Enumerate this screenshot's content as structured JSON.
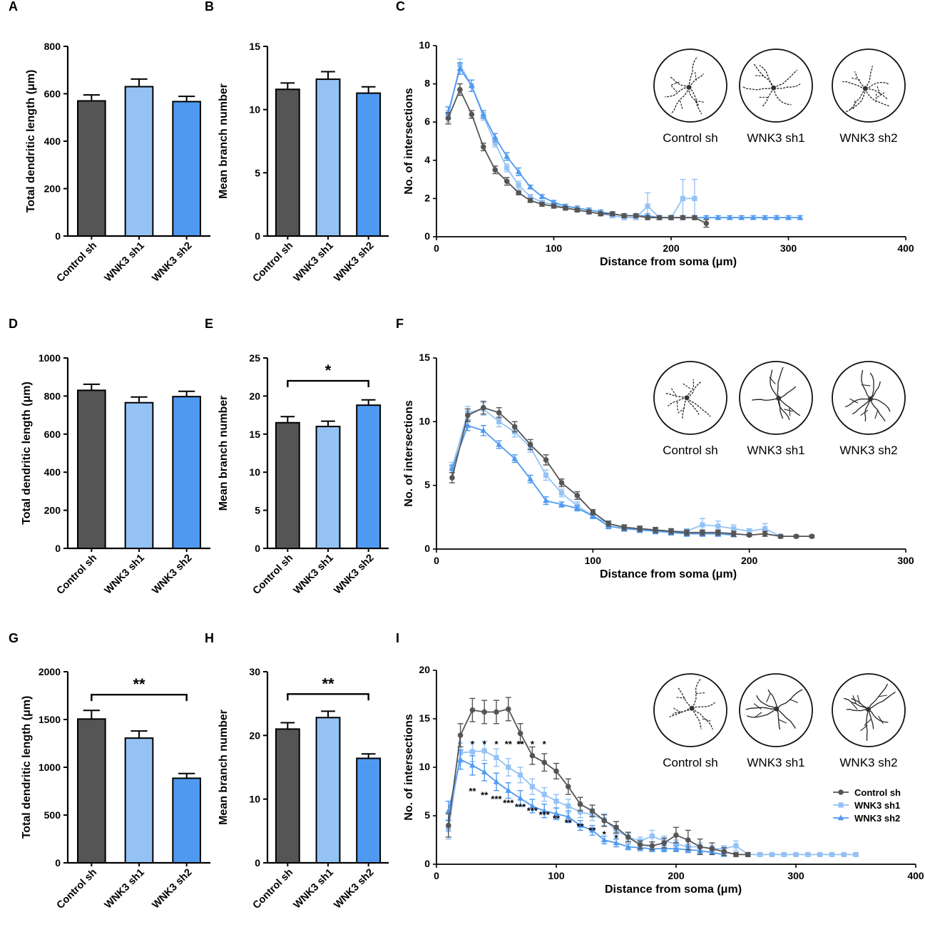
{
  "figure": {
    "panel_labels": [
      "A",
      "B",
      "C",
      "D",
      "E",
      "F",
      "G",
      "H",
      "I"
    ],
    "groups": [
      "Control sh",
      "WNK3 sh1",
      "WNK3 sh2"
    ],
    "colors": {
      "control": "#555555",
      "sh1": "#95c2f5",
      "sh2": "#4f9af0"
    },
    "bar_axis_labels": {
      "length": "Total dendritic length (μm)",
      "branch": "Mean branch number"
    },
    "sholl_axis_labels": {
      "x": "Distance from soma (μm)",
      "y": "No. of intersections"
    },
    "legend": [
      "Control sh",
      "WNK3 sh1",
      "WNK3 sh2"
    ]
  },
  "chart_data": [
    {
      "panel": "A",
      "type": "bar",
      "title": "",
      "xlabel": "",
      "ylabel": "Total dendritic length (μm)",
      "categories": [
        "Control sh",
        "WNK3 sh1",
        "WNK3 sh2"
      ],
      "values": [
        570,
        630,
        567
      ],
      "errors": [
        25,
        32,
        22
      ],
      "ylim": [
        0,
        800
      ],
      "yticks": [
        0,
        200,
        400,
        600,
        800
      ],
      "significance": null
    },
    {
      "panel": "B",
      "type": "bar",
      "title": "",
      "xlabel": "",
      "ylabel": "Mean branch number",
      "categories": [
        "Control sh",
        "WNK3 sh1",
        "WNK3 sh2"
      ],
      "values": [
        11.6,
        12.4,
        11.3
      ],
      "errors": [
        0.5,
        0.6,
        0.5
      ],
      "ylim": [
        0,
        15
      ],
      "yticks": [
        0,
        5,
        10,
        15
      ],
      "significance": null
    },
    {
      "panel": "C",
      "type": "line",
      "xlabel": "Distance from soma (μm)",
      "ylabel": "No. of intersections",
      "xlim": [
        0,
        400
      ],
      "ylim": [
        0,
        10
      ],
      "xticks": [
        0,
        100,
        200,
        300,
        400
      ],
      "yticks": [
        0,
        2,
        4,
        6,
        8,
        10
      ],
      "series": [
        {
          "name": "Control sh",
          "x": [
            10,
            20,
            30,
            40,
            50,
            60,
            70,
            80,
            90,
            100,
            110,
            120,
            130,
            140,
            150,
            160,
            170,
            180,
            190,
            200,
            210,
            220,
            230
          ],
          "y": [
            6.2,
            7.7,
            6.4,
            4.7,
            3.5,
            2.9,
            2.3,
            1.9,
            1.7,
            1.6,
            1.5,
            1.4,
            1.3,
            1.2,
            1.2,
            1.1,
            1.1,
            1.0,
            1.0,
            1.0,
            1.0,
            1.0,
            0.7
          ],
          "err": [
            0.3,
            0.3,
            0.2,
            0.2,
            0.2,
            0.2,
            0.1,
            0.1,
            0.1,
            0.1,
            0.1,
            0.1,
            0.1,
            0.1,
            0.1,
            0.1,
            0.1,
            0.1,
            0.1,
            0.1,
            0.1,
            0.1,
            0.2
          ]
        },
        {
          "name": "WNK3 sh1",
          "x": [
            10,
            20,
            30,
            40,
            50,
            60,
            70,
            80,
            90,
            100,
            110,
            120,
            130,
            140,
            150,
            160,
            170,
            180,
            190,
            200,
            210,
            220
          ],
          "y": [
            6.3,
            9.0,
            7.9,
            6.3,
            4.9,
            3.6,
            2.7,
            2.1,
            1.8,
            1.7,
            1.5,
            1.4,
            1.3,
            1.2,
            1.1,
            1.0,
            1.0,
            1.6,
            1.0,
            1.0,
            2.0,
            2.0
          ],
          "err": [
            0.3,
            0.3,
            0.3,
            0.2,
            0.2,
            0.2,
            0.2,
            0.1,
            0.1,
            0.1,
            0.1,
            0.1,
            0.1,
            0.1,
            0.1,
            0.1,
            0.1,
            0.7,
            0.1,
            0.1,
            1.0,
            1.0
          ]
        },
        {
          "name": "WNK3 sh2",
          "x": [
            10,
            20,
            30,
            40,
            50,
            60,
            70,
            80,
            90,
            100,
            110,
            120,
            130,
            140,
            150,
            160,
            170,
            180,
            190,
            200,
            210,
            220,
            230,
            240,
            250,
            260,
            270,
            280,
            290,
            300,
            310
          ],
          "y": [
            6.5,
            8.8,
            7.9,
            6.4,
            5.2,
            4.2,
            3.4,
            2.6,
            2.1,
            1.8,
            1.6,
            1.5,
            1.4,
            1.3,
            1.2,
            1.1,
            1.1,
            1.1,
            1.0,
            1.0,
            1.0,
            1.0,
            1.0,
            1.0,
            1.0,
            1.0,
            1.0,
            1.0,
            1.0,
            1.0,
            1.0
          ],
          "err": [
            0.3,
            0.3,
            0.3,
            0.2,
            0.2,
            0.2,
            0.2,
            0.1,
            0.1,
            0.1,
            0.1,
            0.1,
            0.1,
            0.1,
            0.1,
            0.1,
            0.1,
            0.1,
            0.1,
            0.1,
            0.1,
            0.1,
            0.1,
            0.1,
            0.1,
            0.1,
            0.1,
            0.1,
            0.1,
            0.1,
            0.1
          ]
        }
      ]
    },
    {
      "panel": "D",
      "type": "bar",
      "title": "",
      "xlabel": "",
      "ylabel": "Total dendritic length (μm)",
      "categories": [
        "Control sh",
        "WNK3 sh1",
        "WNK3 sh2"
      ],
      "values": [
        830,
        765,
        797
      ],
      "errors": [
        32,
        30,
        28
      ],
      "ylim": [
        0,
        1000
      ],
      "yticks": [
        0,
        200,
        400,
        600,
        800,
        1000
      ],
      "significance": null
    },
    {
      "panel": "E",
      "type": "bar",
      "title": "",
      "xlabel": "",
      "ylabel": "Mean branch number",
      "categories": [
        "Control sh",
        "WNK3 sh1",
        "WNK3 sh2"
      ],
      "values": [
        16.5,
        16.0,
        18.8
      ],
      "errors": [
        0.8,
        0.7,
        0.7
      ],
      "ylim": [
        0,
        25
      ],
      "yticks": [
        0,
        5,
        10,
        15,
        20,
        25
      ],
      "significance": {
        "from": 0,
        "to": 2,
        "level": 22,
        "label": "*"
      }
    },
    {
      "panel": "F",
      "type": "line",
      "xlabel": "Distance from soma (μm)",
      "ylabel": "No. of intersections",
      "xlim": [
        0,
        300
      ],
      "ylim": [
        0,
        15
      ],
      "xticks": [
        0,
        100,
        200,
        300
      ],
      "yticks": [
        0,
        5,
        10,
        15
      ],
      "series": [
        {
          "name": "Control sh",
          "x": [
            10,
            20,
            30,
            40,
            50,
            60,
            70,
            80,
            90,
            100,
            110,
            120,
            130,
            140,
            150,
            160,
            170,
            180,
            190,
            200,
            210,
            220,
            230,
            240
          ],
          "y": [
            5.6,
            10.5,
            11.1,
            10.7,
            9.6,
            8.2,
            7.0,
            5.2,
            4.2,
            2.9,
            2.0,
            1.7,
            1.6,
            1.5,
            1.4,
            1.3,
            1.3,
            1.3,
            1.2,
            1.1,
            1.2,
            1.0,
            1.0,
            1.0
          ],
          "err": [
            0.4,
            0.5,
            0.5,
            0.4,
            0.4,
            0.4,
            0.4,
            0.3,
            0.3,
            0.2,
            0.2,
            0.2,
            0.2,
            0.2,
            0.2,
            0.2,
            0.2,
            0.2,
            0.2,
            0.1,
            0.2,
            0.1,
            0.1,
            0.1
          ]
        },
        {
          "name": "WNK3 sh1",
          "x": [
            10,
            20,
            30,
            40,
            50,
            60,
            70,
            80,
            90,
            100,
            110,
            120,
            130,
            140,
            150,
            160,
            170,
            180,
            190,
            200,
            210,
            220
          ],
          "y": [
            6.4,
            10.7,
            11.0,
            10.0,
            9.2,
            8.0,
            5.8,
            4.4,
            3.4,
            2.6,
            2.0,
            1.7,
            1.6,
            1.5,
            1.4,
            1.4,
            1.9,
            1.8,
            1.6,
            1.4,
            1.6,
            1.0
          ],
          "err": [
            0.4,
            0.5,
            0.5,
            0.4,
            0.4,
            0.4,
            0.4,
            0.3,
            0.3,
            0.2,
            0.2,
            0.2,
            0.2,
            0.2,
            0.2,
            0.2,
            0.5,
            0.4,
            0.3,
            0.2,
            0.4,
            0.1
          ]
        },
        {
          "name": "WNK3 sh2",
          "x": [
            10,
            20,
            30,
            40,
            50,
            60,
            70,
            80,
            90,
            100,
            110,
            120,
            130,
            140,
            150,
            160,
            170,
            180,
            190
          ],
          "y": [
            6.3,
            9.7,
            9.3,
            8.2,
            7.1,
            5.5,
            3.8,
            3.5,
            3.2,
            2.6,
            1.8,
            1.6,
            1.5,
            1.4,
            1.3,
            1.2,
            1.2,
            1.2,
            1.1
          ],
          "err": [
            0.3,
            0.4,
            0.4,
            0.3,
            0.3,
            0.3,
            0.3,
            0.2,
            0.2,
            0.2,
            0.2,
            0.2,
            0.2,
            0.2,
            0.2,
            0.2,
            0.2,
            0.2,
            0.1
          ]
        }
      ]
    },
    {
      "panel": "G",
      "type": "bar",
      "title": "",
      "xlabel": "",
      "ylabel": "Total dendritic length (μm)",
      "categories": [
        "Control sh",
        "WNK3 sh1",
        "WNK3 sh2"
      ],
      "values": [
        1505,
        1305,
        885
      ],
      "errors": [
        90,
        75,
        50
      ],
      "ylim": [
        0,
        2000
      ],
      "yticks": [
        0,
        500,
        1000,
        1500,
        2000
      ],
      "significance": {
        "from": 0,
        "to": 2,
        "level": 1760,
        "label": "**"
      }
    },
    {
      "panel": "H",
      "type": "bar",
      "title": "",
      "xlabel": "",
      "ylabel": "Mean branch number",
      "categories": [
        "Control sh",
        "WNK3 sh1",
        "WNK3 sh2"
      ],
      "values": [
        21.0,
        22.8,
        16.4
      ],
      "errors": [
        1.0,
        1.0,
        0.7
      ],
      "ylim": [
        0,
        30
      ],
      "yticks": [
        0,
        10,
        20,
        30
      ],
      "significance": {
        "from": 0,
        "to": 2,
        "level": 26.5,
        "label": "**"
      }
    },
    {
      "panel": "I",
      "type": "line",
      "xlabel": "Distance from soma (μm)",
      "ylabel": "No. of intersections",
      "xlim": [
        0,
        400
      ],
      "ylim": [
        0,
        20
      ],
      "xticks": [
        0,
        100,
        200,
        300,
        400
      ],
      "yticks": [
        0,
        5,
        10,
        15,
        20
      ],
      "legend_position": "right",
      "series": [
        {
          "name": "Control sh",
          "x": [
            10,
            20,
            30,
            40,
            50,
            60,
            70,
            80,
            90,
            100,
            110,
            120,
            130,
            140,
            150,
            160,
            170,
            180,
            190,
            200,
            210,
            220,
            230,
            240,
            250,
            260
          ],
          "y": [
            4.0,
            13.3,
            15.9,
            15.7,
            15.7,
            16.0,
            13.5,
            11.2,
            10.5,
            9.6,
            8.0,
            6.2,
            5.5,
            4.5,
            3.8,
            2.8,
            2.0,
            1.9,
            2.2,
            3.0,
            2.5,
            1.8,
            1.6,
            1.3,
            1.0,
            1.0
          ],
          "err": [
            1.2,
            1.2,
            1.2,
            1.2,
            1.2,
            1.2,
            1.0,
            0.9,
            0.9,
            0.8,
            0.8,
            0.7,
            0.6,
            0.6,
            0.6,
            0.5,
            0.4,
            0.4,
            0.5,
            0.8,
            1.0,
            0.8,
            0.6,
            0.4,
            0.2,
            0.2
          ]
        },
        {
          "name": "WNK3 sh1",
          "x": [
            10,
            20,
            30,
            40,
            50,
            60,
            70,
            80,
            90,
            100,
            110,
            120,
            130,
            140,
            150,
            160,
            170,
            180,
            190,
            200,
            210,
            220,
            230,
            240,
            250,
            260,
            270,
            280,
            290,
            300,
            310,
            320,
            330,
            340,
            350
          ],
          "y": [
            3.6,
            11.5,
            11.6,
            11.7,
            11.0,
            10.0,
            9.2,
            8.0,
            7.2,
            6.5,
            6.0,
            5.4,
            5.1,
            4.6,
            3.5,
            2.8,
            2.4,
            2.9,
            2.4,
            2.1,
            1.8,
            1.8,
            1.6,
            1.6,
            1.9,
            1.0,
            1.0,
            1.0,
            1.0,
            1.0,
            1.0,
            1.0,
            1.0,
            1.0,
            1.0
          ],
          "err": [
            1.0,
            1.0,
            1.0,
            1.0,
            0.9,
            0.9,
            0.8,
            0.8,
            0.7,
            0.7,
            0.7,
            0.6,
            0.6,
            0.6,
            0.5,
            0.4,
            0.4,
            0.6,
            0.5,
            0.4,
            0.3,
            0.4,
            0.3,
            0.3,
            0.5,
            0.1,
            0.1,
            0.1,
            0.1,
            0.1,
            0.1,
            0.1,
            0.1,
            0.1,
            0.1
          ]
        },
        {
          "name": "WNK3 sh2",
          "x": [
            10,
            20,
            30,
            40,
            50,
            60,
            70,
            80,
            90,
            100,
            110,
            120,
            130,
            140,
            150,
            160,
            170,
            180,
            190,
            200,
            210,
            220,
            230,
            240
          ],
          "y": [
            5.5,
            10.8,
            10.2,
            9.5,
            8.5,
            7.6,
            6.8,
            6.0,
            5.5,
            5.2,
            4.9,
            4.0,
            3.5,
            2.5,
            2.2,
            1.8,
            1.7,
            1.6,
            1.6,
            1.6,
            1.5,
            1.4,
            1.2,
            1.0
          ],
          "err": [
            1.0,
            1.0,
            1.0,
            0.9,
            0.9,
            0.8,
            0.8,
            0.7,
            0.7,
            0.6,
            0.6,
            0.5,
            0.5,
            0.4,
            0.4,
            0.3,
            0.3,
            0.3,
            0.3,
            0.3,
            0.3,
            0.3,
            0.2,
            0.1
          ]
        }
      ],
      "significance_markers": [
        {
          "x": 30,
          "row1": "*",
          "row2": "**"
        },
        {
          "x": 40,
          "row1": "*",
          "row2": "**"
        },
        {
          "x": 50,
          "row1": "*",
          "row2": "***"
        },
        {
          "x": 60,
          "row1": "**",
          "row2": "***"
        },
        {
          "x": 70,
          "row1": "**",
          "row2": "***"
        },
        {
          "x": 80,
          "row1": "*",
          "row2": "***"
        },
        {
          "x": 90,
          "row1": "*",
          "row2": "***"
        },
        {
          "x": 100,
          "row1": "",
          "row2": "**"
        },
        {
          "x": 110,
          "row1": "",
          "row2": "**"
        },
        {
          "x": 120,
          "row1": "",
          "row2": "**"
        },
        {
          "x": 130,
          "row1": "",
          "row2": "**"
        },
        {
          "x": 140,
          "row1": "",
          "row2": "*"
        },
        {
          "x": 150,
          "row1": "",
          "row2": "*"
        }
      ]
    }
  ]
}
